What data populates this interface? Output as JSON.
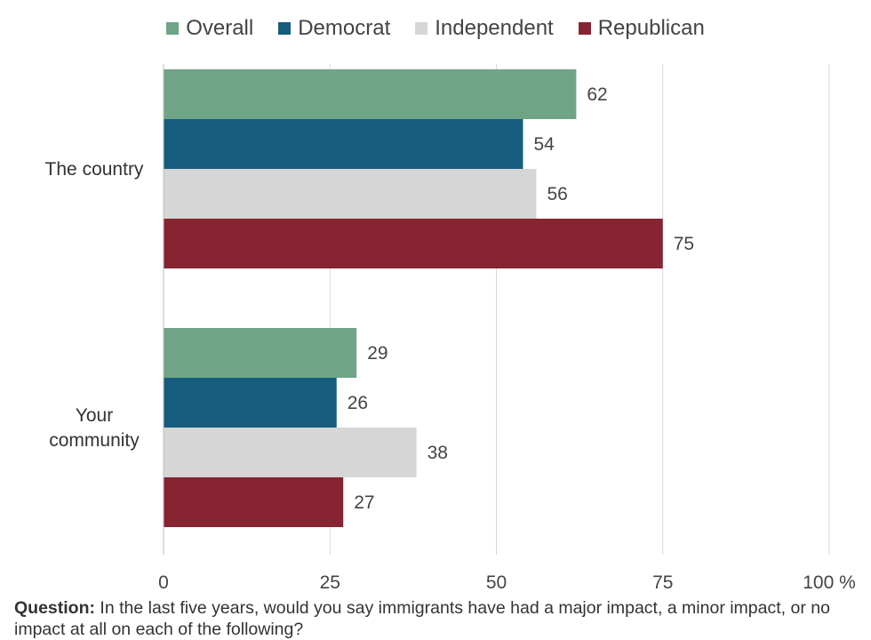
{
  "chart_data": {
    "type": "bar",
    "orientation": "horizontal",
    "categories": [
      "The country",
      "Your community"
    ],
    "series": [
      {
        "name": "Overall",
        "values": [
          62,
          29
        ]
      },
      {
        "name": "Democrat",
        "values": [
          54,
          26
        ]
      },
      {
        "name": "Independent",
        "values": [
          56,
          38
        ]
      },
      {
        "name": "Republican",
        "values": [
          75,
          27
        ]
      }
    ],
    "colors": [
      "#6fa487",
      "#165c7d",
      "#d6d6d6",
      "#862432"
    ],
    "xlim": [
      0,
      100
    ],
    "xticks": [
      "0",
      "25",
      "50",
      "75",
      "100 %"
    ],
    "legend_position": "top",
    "grid": true,
    "title": "",
    "xlabel": "",
    "ylabel": ""
  },
  "footer": {
    "label": "Question:",
    "text": " In the last five years, would you say immigrants have had a major impact, a minor impact, or no impact at all on each of the following?"
  }
}
